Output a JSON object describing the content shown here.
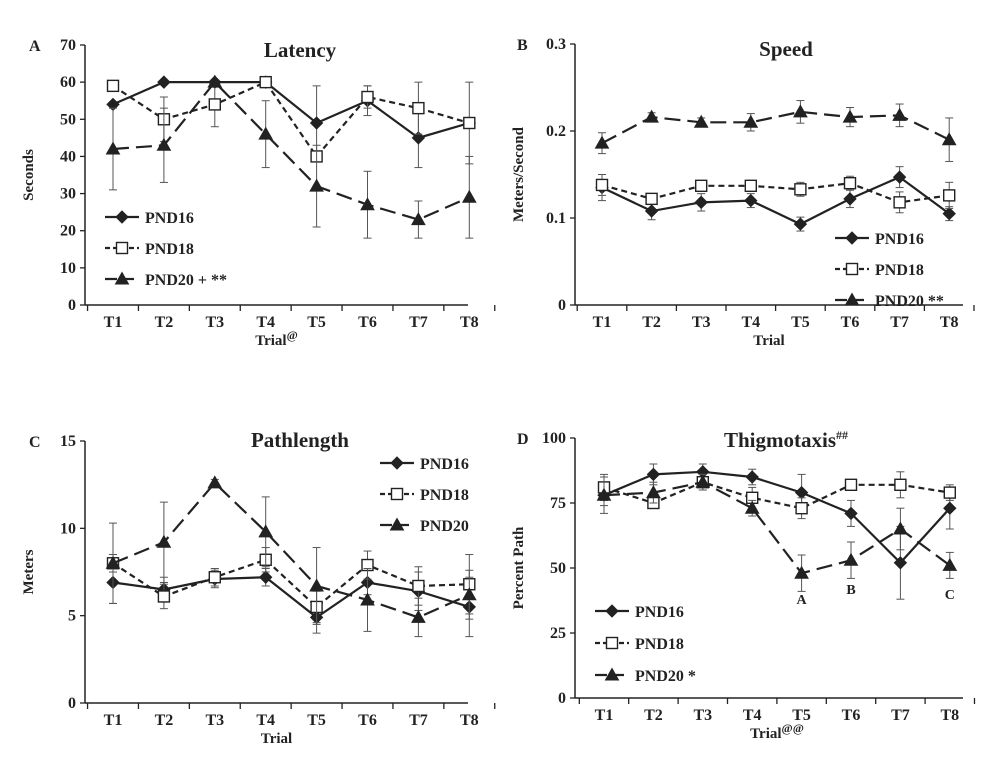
{
  "chart_data": [
    {
      "panel": "A",
      "type": "line",
      "title": "Latency",
      "title_superscript": "",
      "xlabel": "Trial",
      "xlabel_superscript": "@",
      "ylabel": "Seconds",
      "ylim": [
        0,
        70
      ],
      "y_ticks": [
        0,
        10,
        20,
        30,
        40,
        50,
        60,
        70
      ],
      "y_tick_labels": [
        "0",
        "10",
        "20",
        "30",
        "40",
        "50",
        "60",
        "70"
      ],
      "categories": [
        "T1",
        "T2",
        "T3",
        "T4",
        "T5",
        "T6",
        "T7",
        "T8"
      ],
      "legend_position": "bottom-left",
      "series": [
        {
          "name": "PND16",
          "annotation": "",
          "marker": "diamond",
          "dash": "solid",
          "values": [
            54,
            60,
            60,
            60,
            49,
            55,
            45,
            49
          ],
          "errors": [
            0,
            0,
            0,
            0,
            10,
            4,
            8,
            0
          ]
        },
        {
          "name": "PND18",
          "annotation": "",
          "marker": "square",
          "dash": "short",
          "values": [
            59,
            50,
            54,
            60,
            40,
            56,
            53,
            49
          ],
          "errors": [
            0,
            6,
            6,
            0,
            0,
            3,
            7,
            11
          ]
        },
        {
          "name": "PND20",
          "annotation": "+ **",
          "marker": "triangle",
          "dash": "long",
          "values": [
            42,
            43,
            60,
            46,
            32,
            27,
            23,
            29
          ],
          "errors": [
            11,
            10,
            0,
            9,
            11,
            9,
            5,
            11
          ]
        }
      ],
      "annotations": []
    },
    {
      "panel": "B",
      "type": "line",
      "title": "Speed",
      "title_superscript": "",
      "xlabel": "Trial",
      "xlabel_superscript": "",
      "ylabel": "Meters/Second",
      "ylim": [
        0,
        0.3
      ],
      "y_ticks": [
        0,
        0.1,
        0.2,
        0.3
      ],
      "y_tick_labels": [
        "0",
        "0.1",
        "0.2",
        "0.3"
      ],
      "categories": [
        "T1",
        "T2",
        "T3",
        "T4",
        "T5",
        "T6",
        "T7",
        "T8"
      ],
      "legend_position": "bottom-right",
      "series": [
        {
          "name": "PND16",
          "annotation": "",
          "marker": "diamond",
          "dash": "solid",
          "values": [
            0.135,
            0.108,
            0.118,
            0.12,
            0.093,
            0.122,
            0.147,
            0.105
          ],
          "errors": [
            0.015,
            0.01,
            0.01,
            0.008,
            0.008,
            0.01,
            0.012,
            0.008
          ]
        },
        {
          "name": "PND18",
          "annotation": "",
          "marker": "square",
          "dash": "short",
          "values": [
            0.138,
            0.122,
            0.137,
            0.137,
            0.133,
            0.14,
            0.118,
            0.126
          ],
          "errors": [
            0.012,
            0.005,
            0.005,
            0.005,
            0.008,
            0.008,
            0.012,
            0.015
          ]
        },
        {
          "name": "PND20",
          "annotation": "**",
          "marker": "triangle",
          "dash": "long",
          "values": [
            0.186,
            0.216,
            0.21,
            0.21,
            0.222,
            0.216,
            0.218,
            0.19
          ],
          "errors": [
            0.012,
            0.005,
            0.005,
            0.01,
            0.013,
            0.011,
            0.013,
            0.025
          ]
        }
      ],
      "annotations": []
    },
    {
      "panel": "C",
      "type": "line",
      "title": "Pathlength",
      "title_superscript": "",
      "xlabel": "Trial",
      "xlabel_superscript": "",
      "ylabel": "Meters",
      "ylim": [
        0,
        15
      ],
      "y_ticks": [
        0,
        5,
        10,
        15
      ],
      "y_tick_labels": [
        "0",
        "5",
        "10",
        "15"
      ],
      "categories": [
        "T1",
        "T2",
        "T3",
        "T4",
        "T5",
        "T6",
        "T7",
        "T8"
      ],
      "legend_position": "top-right",
      "series": [
        {
          "name": "PND16",
          "annotation": "",
          "marker": "diamond",
          "dash": "solid",
          "values": [
            6.9,
            6.5,
            7.1,
            7.2,
            4.9,
            6.9,
            6.4,
            5.5
          ],
          "errors": [
            1.2,
            0.7,
            0.5,
            0.5,
            0.9,
            0.7,
            1.1,
            1.7
          ]
        },
        {
          "name": "PND18",
          "annotation": "",
          "marker": "square",
          "dash": "short",
          "values": [
            8.0,
            6.1,
            7.2,
            8.2,
            5.5,
            7.9,
            6.7,
            6.8
          ],
          "errors": [
            2.3,
            0.7,
            0.5,
            0.7,
            0.9,
            0.8,
            1.1,
            1.7
          ]
        },
        {
          "name": "PND20",
          "annotation": "",
          "marker": "triangle",
          "dash": "long",
          "values": [
            8.0,
            9.2,
            12.6,
            9.8,
            6.7,
            5.9,
            4.9,
            6.2
          ],
          "errors": [
            0.5,
            2.3,
            0.2,
            2.0,
            2.2,
            1.8,
            1.1,
            1.4
          ]
        }
      ],
      "annotations": []
    },
    {
      "panel": "D",
      "type": "line",
      "title": "Thigmotaxis",
      "title_superscript": "##",
      "xlabel": "Trial",
      "xlabel_superscript": "@@",
      "ylabel": "Percent Path",
      "ylim": [
        0,
        100
      ],
      "y_ticks": [
        0,
        25,
        50,
        75,
        100
      ],
      "y_tick_labels": [
        "0",
        "25",
        "50",
        "75",
        "100"
      ],
      "categories": [
        "T1",
        "T2",
        "T3",
        "T4",
        "T5",
        "T6",
        "T7",
        "T8"
      ],
      "legend_position": "bottom-left",
      "series": [
        {
          "name": "PND16",
          "annotation": "",
          "marker": "diamond",
          "dash": "solid",
          "values": [
            78,
            86,
            87,
            85,
            79,
            71,
            52,
            73
          ],
          "errors": [
            4,
            4,
            3,
            3,
            7,
            5,
            14,
            8
          ]
        },
        {
          "name": "PND18",
          "annotation": "",
          "marker": "square",
          "dash": "short",
          "values": [
            81,
            75,
            83,
            77,
            73,
            82,
            82,
            79
          ],
          "errors": [
            5,
            2,
            3,
            4,
            4,
            2,
            5,
            3
          ]
        },
        {
          "name": "PND20",
          "annotation": "*",
          "marker": "triangle",
          "dash": "long",
          "values": [
            78,
            79,
            83,
            73,
            48,
            53,
            65,
            51
          ],
          "errors": [
            7,
            4,
            3,
            3,
            7,
            7,
            8,
            5
          ]
        }
      ],
      "annotations": [
        {
          "text": "A",
          "category_index": 4,
          "y": 38
        },
        {
          "text": "B",
          "category_index": 5,
          "y": 42
        },
        {
          "text": "C",
          "category_index": 7,
          "y": 40
        }
      ]
    }
  ]
}
